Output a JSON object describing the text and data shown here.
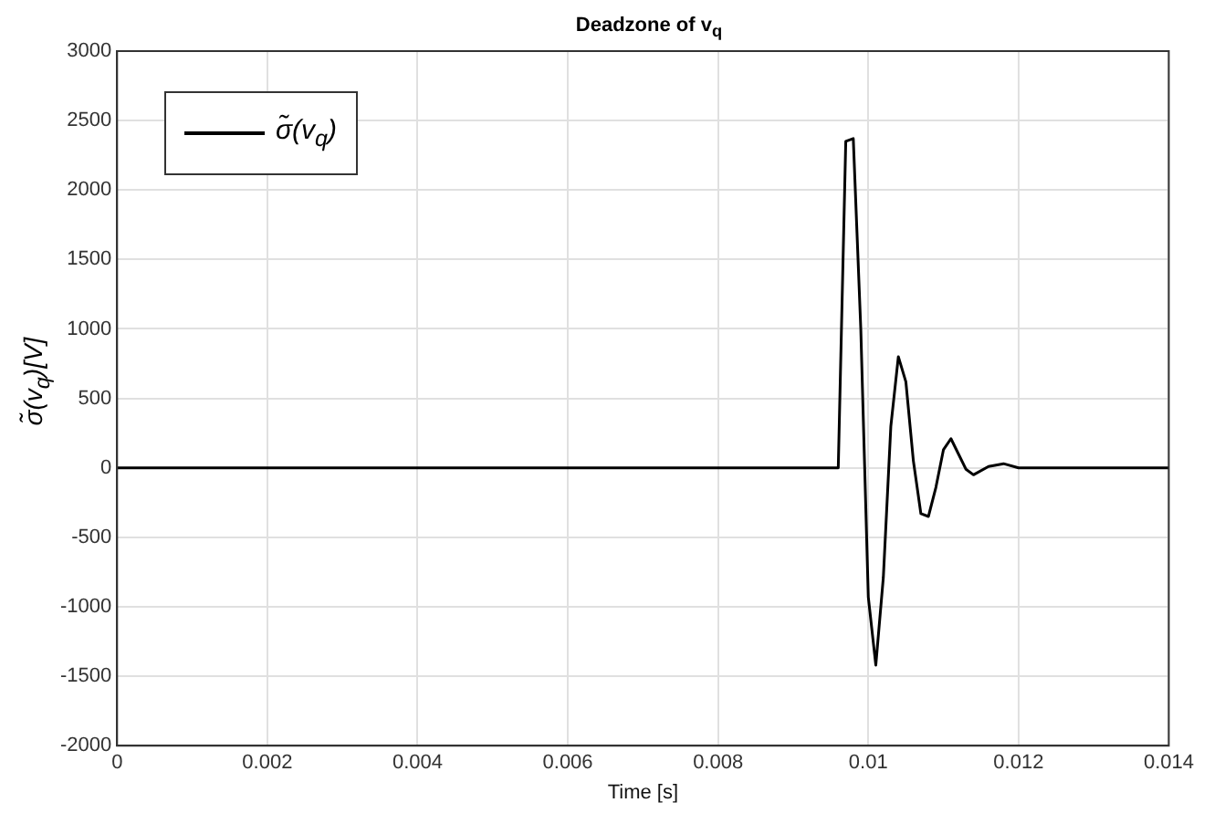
{
  "chart_data": {
    "type": "line",
    "title": "Deadzone of v$_{q}$",
    "xlabel": "Time [s]",
    "ylabel": "σ̃(v$_{q}$)[V]",
    "xlim": [
      0,
      0.014
    ],
    "xticks": [
      0,
      0.002,
      0.004,
      0.006,
      0.008,
      0.01,
      0.012,
      0.014
    ],
    "ylim": [
      -2000,
      3000
    ],
    "yticks": [
      -2000,
      -1500,
      -1000,
      -500,
      0,
      500,
      1000,
      1500,
      2000,
      2500,
      3000
    ],
    "grid": true,
    "legend": "top left",
    "marker": "none",
    "line_style": "solid",
    "series": [
      {
        "name": "σ̃(v$_{q}$)",
        "color": "#000000",
        "x": [
          0,
          0.0096,
          0.0097,
          0.0098,
          0.0099,
          0.01,
          0.0101,
          0.0102,
          0.0103,
          0.0104,
          0.0105,
          0.0106,
          0.0107,
          0.0108,
          0.0109,
          0.011,
          0.0111,
          0.0112,
          0.0113,
          0.0114,
          0.0116,
          0.0118,
          0.012,
          0.014
        ],
        "values": [
          0,
          0,
          2350,
          2370,
          1000,
          -930,
          -1420,
          -790,
          300,
          800,
          620,
          50,
          -330,
          -350,
          -140,
          130,
          210,
          100,
          -10,
          -50,
          10,
          30,
          0,
          0
        ]
      }
    ]
  }
}
